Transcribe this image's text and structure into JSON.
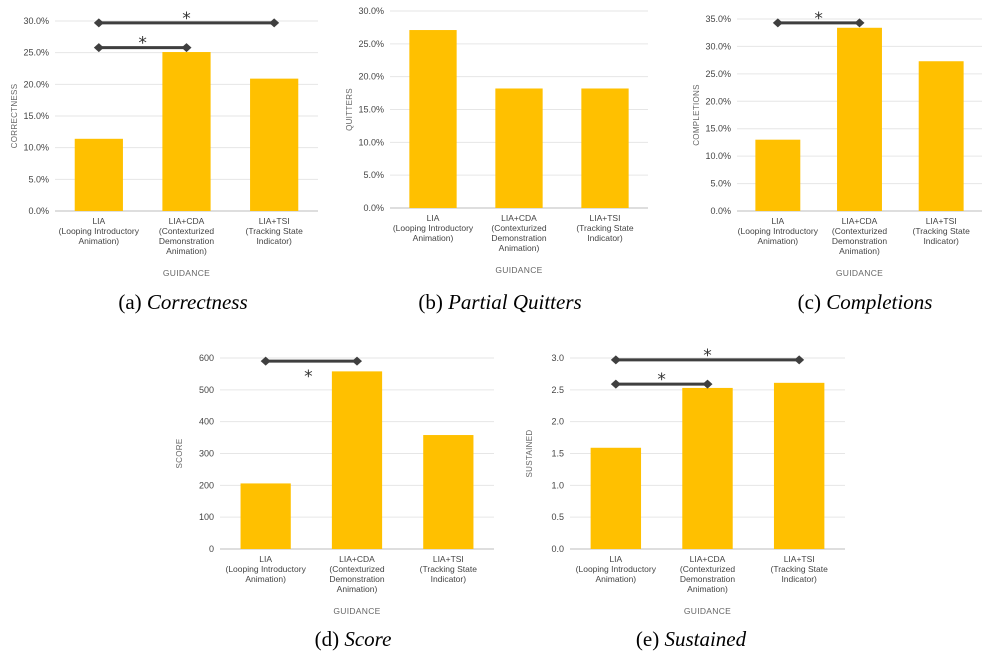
{
  "colors": {
    "bar": "#FFC000",
    "significance": "#3f3f3f"
  },
  "chart_data": [
    {
      "id": "a",
      "type": "bar",
      "caption_prefix": "(a)",
      "caption_title": "Correctness",
      "ylabel": "CORRECTNESS",
      "xlabel": "GUIDANCE",
      "ylim": [
        0,
        30
      ],
      "yticks": [
        "0.0%",
        "5.0%",
        "10.0%",
        "15.0%",
        "20.0%",
        "25.0%",
        "30.0%"
      ],
      "categories": [
        [
          "LIA",
          "(Looping Introductory",
          "Animation)"
        ],
        [
          "LIA+CDA",
          "(Contexturized",
          "Demonstration",
          "Animation)"
        ],
        [
          "LIA+TSI",
          "(Tracking State",
          "Indicator)"
        ]
      ],
      "values": [
        11.4,
        25.1,
        20.9
      ],
      "significance": [
        {
          "from": 0,
          "to": 2,
          "level": 29.7,
          "label": "*"
        },
        {
          "from": 0,
          "to": 1,
          "level": 25.8,
          "label": "*"
        }
      ]
    },
    {
      "id": "b",
      "type": "bar",
      "caption_prefix": "(b)",
      "caption_title": "Partial Quitters",
      "ylabel": "QUITTERS",
      "xlabel": "GUIDANCE",
      "ylim": [
        0,
        30
      ],
      "yticks": [
        "0.0%",
        "5.0%",
        "10.0%",
        "15.0%",
        "20.0%",
        "25.0%",
        "30.0%"
      ],
      "categories": [
        [
          "LIA",
          "(Looping Introductory",
          "Animation)"
        ],
        [
          "LIA+CDA",
          "(Contexturized",
          "Demonstration",
          "Animation)"
        ],
        [
          "LIA+TSI",
          "(Tracking State",
          "Indicator)"
        ]
      ],
      "values": [
        27.1,
        18.2,
        18.2
      ],
      "significance": []
    },
    {
      "id": "c",
      "type": "bar",
      "caption_prefix": "(c)",
      "caption_title": "Completions",
      "ylabel": "COMPLETIONS",
      "xlabel": "GUIDANCE",
      "ylim": [
        0,
        35
      ],
      "yticks": [
        "0.0%",
        "5.0%",
        "10.0%",
        "15.0%",
        "20.0%",
        "25.0%",
        "30.0%",
        "35.0%"
      ],
      "categories": [
        [
          "LIA",
          "(Looping Introductory",
          "Animation)"
        ],
        [
          "LIA+CDA",
          "(Contexturized",
          "Demonstration",
          "Animation)"
        ],
        [
          "LIA+TSI",
          "(Tracking State",
          "Indicator)"
        ]
      ],
      "values": [
        13.0,
        33.4,
        27.3
      ],
      "significance": [
        {
          "from": 0,
          "to": 1,
          "level": 34.3,
          "label": "*"
        }
      ]
    },
    {
      "id": "d",
      "type": "bar",
      "caption_prefix": "(d)",
      "caption_title": "Score",
      "ylabel": "SCORE",
      "xlabel": "GUIDANCE",
      "ylim": [
        0,
        600
      ],
      "yticks": [
        "0",
        "100",
        "200",
        "300",
        "400",
        "500",
        "600"
      ],
      "categories": [
        [
          "LIA",
          "(Looping Introductory",
          "Animation)"
        ],
        [
          "LIA+CDA",
          "(Contexturized",
          "Demonstration",
          "Animation)"
        ],
        [
          "LIA+TSI",
          "(Tracking State",
          "Indicator)"
        ]
      ],
      "values": [
        206,
        558,
        358
      ],
      "significance": [
        {
          "from": 0,
          "to": 1,
          "level": 590,
          "label": "*",
          "label_below": true
        }
      ]
    },
    {
      "id": "e",
      "type": "bar",
      "caption_prefix": "(e)",
      "caption_title": "Sustained",
      "ylabel": "SUSTAINED",
      "xlabel": "GUIDANCE",
      "ylim": [
        0,
        3
      ],
      "yticks": [
        "0.0",
        "0.5",
        "1.0",
        "1.5",
        "2.0",
        "2.5",
        "3.0"
      ],
      "categories": [
        [
          "LIA",
          "(Looping Introductory",
          "Animation)"
        ],
        [
          "LIA+CDA",
          "(Contexturized",
          "Demonstration",
          "Animation)"
        ],
        [
          "LIA+TSI",
          "(Tracking State",
          "Indicator)"
        ]
      ],
      "values": [
        1.59,
        2.53,
        2.61
      ],
      "significance": [
        {
          "from": 0,
          "to": 2,
          "level": 2.97,
          "label": "*"
        },
        {
          "from": 0,
          "to": 1,
          "level": 2.59,
          "label": "*"
        }
      ]
    }
  ]
}
